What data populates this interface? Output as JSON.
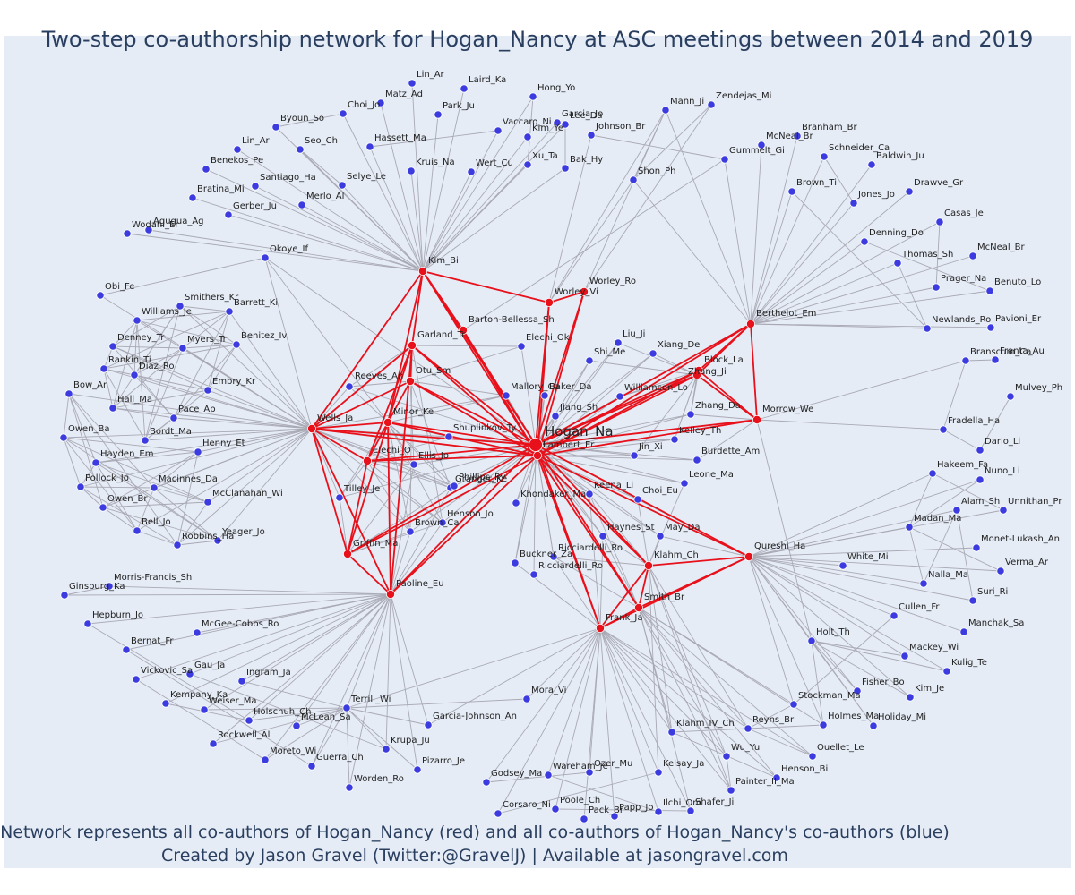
{
  "title": "Two-step co-authorship network for Hogan_Nancy at ASC meetings between 2014 and 2019",
  "footer_line1": "Network represents all co-authors of Hogan_Nancy (red) and all co-authors of Hogan_Nancy's co-authors (blue)",
  "footer_line2": "Created by Jason Gravel (Twitter:@GravelJ) | Available at jasongravel.com",
  "colors": {
    "background": "#e5ecf6",
    "red_node": "#e8101a",
    "blue_node": "#3b3be0",
    "red_edge": "#e8101a",
    "gray_edge": "#a9a9b4",
    "text": "#2a3f5f"
  },
  "chart_data": {
    "type": "network",
    "center": "Hogan_Na",
    "red_nodes": [
      "Hogan_Na",
      "Lambert_Er",
      "Kim_Bi",
      "Worley_Vi",
      "Worley_Ro",
      "Barton-Bellessa_Sh",
      "Garland_Tr",
      "Otu_Sm",
      "Wells_Ja",
      "Minor_Ke",
      "Elechi_O",
      "Griffin_Ma",
      "Paoline_Eu",
      "Berthelot_Em",
      "Block_La",
      "Zhang_Ji",
      "Morrow_We",
      "Qureshi_Ha",
      "Klahm_Ch",
      "Smith_Br",
      "Frank_Ja"
    ],
    "blue_nodes": [
      "Lin_Ar",
      "Laird_Ka",
      "Hong_Yo",
      "Garcia_Jo",
      "Matz_Ad",
      "Park_Ju",
      "Choi_Jo",
      "Vaccaro_Ni",
      "Kim_Ye",
      "Lee_Da",
      "Johnson_Br",
      "Byoun_So",
      "Seo_Ch",
      "Hassett_Ma",
      "Mann_Ji",
      "Zendejas_Mi",
      "Lin_Ar ",
      "Kruis_Na",
      "Wert_Cu",
      "Xu_Ta",
      "Bak_Hy",
      "Shon_Ph",
      "Benekos_Pe",
      "Santiago_Ha",
      "Selye_Le",
      "Bratina_Mi",
      "Merlo_Al",
      "Gerber_Ju",
      "Wodahl_Er",
      "Agugua_Ag",
      "Okoye_If",
      "Obi_Fe",
      "Smithers_Kr",
      "Barrett_Ki",
      "Williams_Je",
      "Denney_Tr",
      "Myers_Tr",
      "Benitez_Iv",
      "Rankin_Ti",
      "Diaz_Ro",
      "Bow_Ar",
      "Embry_Kr",
      "Hall_Ma",
      "Pace_Ap",
      "Reeves_An",
      "Owen_Ba",
      "Bordt_Ma",
      "Henny_Et",
      "Hayden_Em",
      "Pollock_Jo",
      "Macinnes_Da",
      "McClanahan_Wi",
      "Owen_Br",
      "Bell_Jo",
      "Robbins_Ha",
      "Yeager_Jo",
      "Mallory_Ca",
      "Baker_Da",
      "Elechi_Ok",
      "Shi_Me",
      "Liu_Ji",
      "Xiang_De",
      "Williamson_Lo",
      "Jiang_Sh",
      "Zhang_Da",
      "Kelley_Th",
      "Jin_Xi",
      "Shuplinkov_Ty",
      "Ellis_Jo",
      "Tilley_Je",
      "Granger_Ke",
      "Phillips_Ry",
      "Henson_Jo",
      "Brown_Ca",
      "Khondaker_Ma",
      "Keena_Li",
      "Choi_Eu",
      "Burdette_Am",
      "Leone_Ma",
      "Haynes_St",
      "May_Da",
      "Ricciardelli_Ro",
      "Ricciardelli_Ro ",
      "Buckner_Za",
      "Morris-Francis_Sh",
      "Ginsburg_Ka",
      "Hepburn_Jo",
      "McGee-Cobbs_Ro",
      "Bernat_Fr",
      "Vickovic_Sa",
      "Gau_Ja",
      "Ingram_Ja",
      "Kempany_Ka",
      "Weiser_Ma",
      "Terrill_Wi",
      "Holschuh_Ch",
      "McLean_Sa",
      "Rockwell_Al",
      "Garcia-Johnson_An",
      "Mora_Vi",
      "Krupa_Ju",
      "Moreto_Wi",
      "Guerra_Ch",
      "Pizarro_Je",
      "Worden_Ro",
      "Godsey_Ma",
      "Wareham_Je",
      "Ozer_Mu",
      "Corsaro_Ni",
      "Poole_Ch",
      "Pack_Br",
      "Papp_Jo",
      "Ilchi_Om",
      "Shafer_Ji",
      "Kelsay_Ja",
      "Painter_II_Ma",
      "Klahm_IV_Ch",
      "Reyns_Br",
      "Wu_Yu",
      "Henson_Bi",
      "Ouellet_Le",
      "Holmes_Ma",
      "Holiday_Mi",
      "Stockman_Ma",
      "Fisher_Bo",
      "Kim_Je",
      "Holt_Th",
      "Mackey_Wi",
      "Kulig_Te",
      "Cullen_Fr",
      "Manchak_Sa",
      "White_Mi",
      "Suri_Ri",
      "Nalla_Ma",
      "Verma_Ar",
      "Madan_Ma",
      "Monet-Lukash_An",
      "Alam_Sh",
      "Unnithan_Pr",
      "Hakeem_Fa",
      "Nuno_Li",
      "Fradella_Ha",
      "Dario_Li",
      "Mulvey_Ph",
      "Branscum_Ca",
      "Franta_Au",
      "Newlands_Ro",
      "Pavioni_Er",
      "Prager_Na",
      "Benuto_Lo",
      "Thomas_Sh",
      "McNeal_Br",
      "Denning_Do",
      "Casas_Je",
      "Jones_Jo",
      "Drawve_Gr",
      "Brown_Ti",
      "Baldwin_Ju",
      "Schneider_Ca",
      "McNeal_Br ",
      "Branham_Br",
      "Gummelt_Gi"
    ]
  }
}
